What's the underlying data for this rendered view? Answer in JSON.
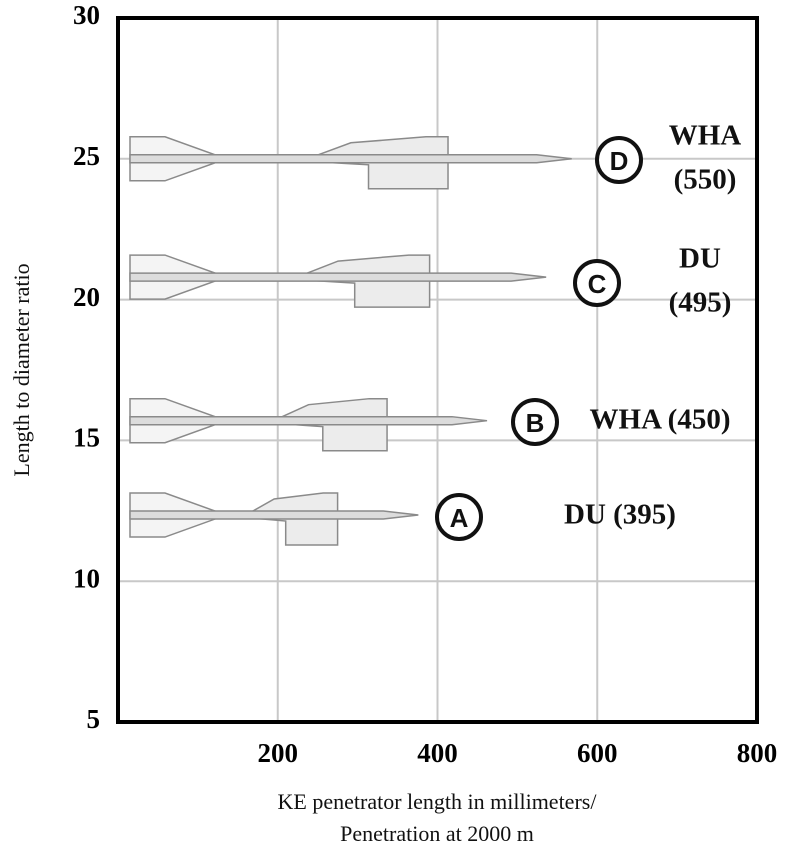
{
  "chart_data": {
    "type": "penetrator",
    "xlabel": [
      "KE penetrator  length in millimeters/",
      "Penetration at 2000 m"
    ],
    "ylabel": "Length to diameter ratio",
    "xlim": [
      0,
      800
    ],
    "xticks": [
      200,
      400,
      600,
      800
    ],
    "ylim": [
      5,
      30
    ],
    "yticks": [
      5,
      10,
      15,
      20,
      25,
      30
    ],
    "grid": true,
    "markers": [
      "A",
      "B",
      "C",
      "D"
    ],
    "labels": [
      [
        "DU (395)"
      ],
      [
        "WHA (450)"
      ],
      [
        "DU",
        "(495)"
      ],
      [
        "WHA",
        "(550)"
      ]
    ],
    "x": [
      376,
      462,
      536,
      568
    ],
    "values": [
      12.35,
      15.7,
      20.8,
      25.0
    ]
  }
}
